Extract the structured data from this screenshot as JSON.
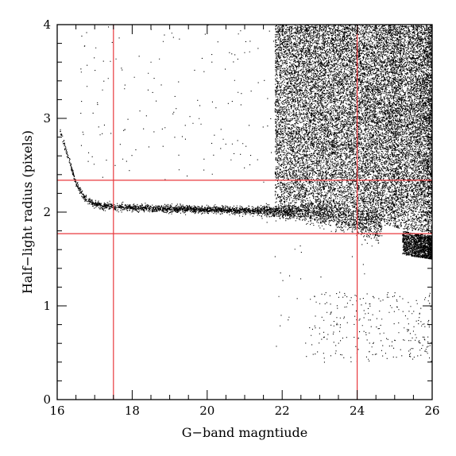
{
  "chart_data": {
    "type": "scatter",
    "title": "",
    "xlabel": "G−band magntiude",
    "ylabel": "Half−light radius (pixels)",
    "xlim": [
      16,
      26
    ],
    "ylim": [
      0,
      4
    ],
    "xticks": [
      16,
      18,
      20,
      22,
      24,
      26
    ],
    "yticks": [
      0,
      1,
      2,
      3,
      4
    ],
    "xtick_labels": [
      "16",
      "18",
      "20",
      "22",
      "24",
      "26"
    ],
    "ytick_labels": [
      "0",
      "1",
      "2",
      "3",
      "4"
    ],
    "grid": false,
    "legend": "none",
    "point_color": "#000000",
    "reference_line_color": "#e8383d",
    "reference_lines": {
      "x": [
        17.5,
        24.0
      ],
      "y": [
        1.77,
        2.34
      ]
    },
    "series": [
      {
        "description_points": [
          [
            16.05,
            2.9
          ],
          [
            16.2,
            2.7
          ],
          [
            16.35,
            2.5
          ],
          [
            16.5,
            2.3
          ],
          [
            16.7,
            2.17
          ],
          [
            16.9,
            2.1
          ],
          [
            17.2,
            2.07
          ],
          [
            17.5,
            2.06
          ],
          [
            18.0,
            2.05
          ],
          [
            19.0,
            2.04
          ],
          [
            20.0,
            2.03
          ],
          [
            21.0,
            2.02
          ],
          [
            22.0,
            2.01
          ],
          [
            22.5,
            2.0
          ],
          [
            23.0,
            1.98
          ],
          [
            23.5,
            1.94
          ],
          [
            24.0,
            1.9
          ],
          [
            24.5,
            1.86
          ],
          [
            25.0,
            1.82
          ],
          [
            25.5,
            1.78
          ],
          [
            26.0,
            1.75
          ]
        ]
      }
    ]
  }
}
